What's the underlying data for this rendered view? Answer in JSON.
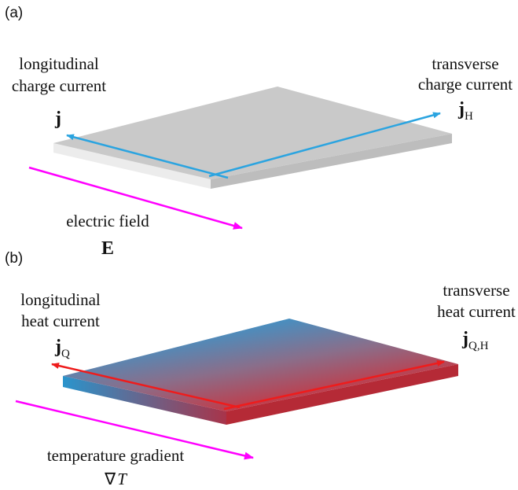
{
  "panels": [
    {
      "label": "(a)",
      "left": {
        "lines": [
          "longitudinal",
          "charge current"
        ],
        "symbol": "j"
      },
      "right": {
        "lines": [
          "transverse",
          "charge current"
        ],
        "symbol": "j",
        "subscript": "H"
      },
      "field": {
        "label": "electric field",
        "symbol": "E"
      }
    },
    {
      "label": "(b)",
      "left": {
        "lines": [
          "longitudinal",
          "heat current"
        ],
        "symbol": "j",
        "subscript": "Q"
      },
      "right": {
        "lines": [
          "transverse",
          "heat current"
        ],
        "symbol": "j",
        "subscript": "Q,H"
      },
      "field": {
        "label": "temperature gradient",
        "symbol": "∇",
        "subscript": "T"
      }
    }
  ]
}
